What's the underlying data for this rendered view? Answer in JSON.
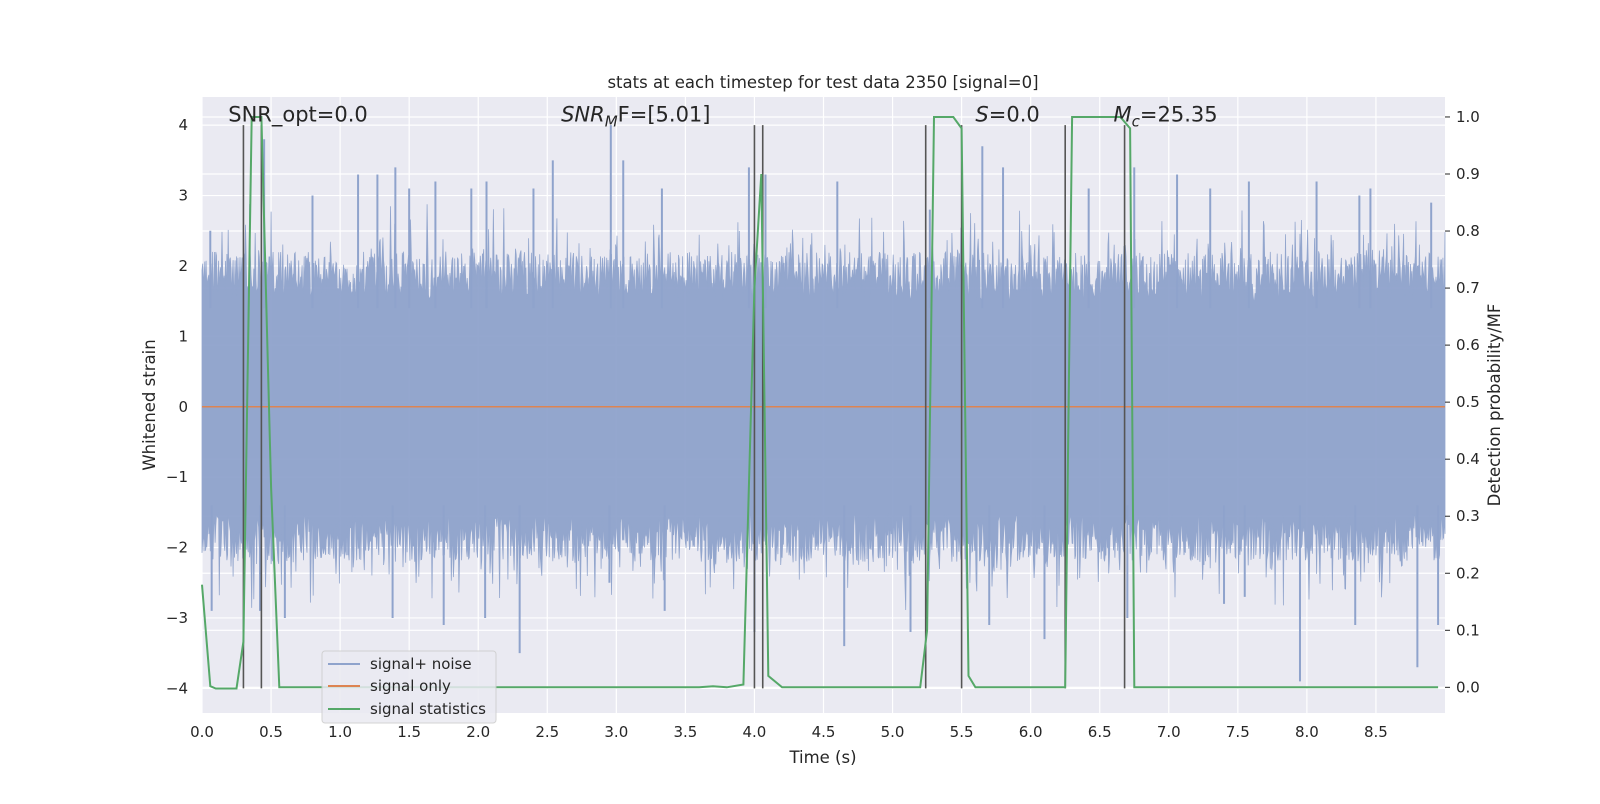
{
  "chart_data": {
    "type": "line",
    "title": "stats at each timestep for test data 2350 [signal=0]",
    "xlabel": "Time (s)",
    "ylabel": "Whitened strain",
    "ylabel_right": "Detection probability/MF",
    "xlim": [
      0,
      9.0
    ],
    "ylim": [
      -4.35,
      4.4
    ],
    "ylim_right": [
      -0.045,
      1.035
    ],
    "x_ticks": [
      0.0,
      0.5,
      1.0,
      1.5,
      2.0,
      2.5,
      3.0,
      3.5,
      4.0,
      4.5,
      5.0,
      5.5,
      6.0,
      6.5,
      7.0,
      7.5,
      8.0,
      8.5
    ],
    "x_tick_labels": [
      "0.0",
      "0.5",
      "1.0",
      "1.5",
      "2.0",
      "2.5",
      "3.0",
      "3.5",
      "4.0",
      "4.5",
      "5.0",
      "5.5",
      "6.0",
      "6.5",
      "7.0",
      "7.5",
      "8.0",
      "8.5"
    ],
    "y_ticks": [
      4,
      3,
      2,
      1,
      0,
      -1,
      -2,
      -3,
      -4
    ],
    "y_tick_labels": [
      "4",
      "3",
      "2",
      "1",
      "0",
      "−1",
      "−2",
      "−3",
      "−4"
    ],
    "y_right_ticks": [
      1.0,
      0.9,
      0.8,
      0.7,
      0.6,
      0.5,
      0.4,
      0.3,
      0.2,
      0.1,
      0.0
    ],
    "y_right_tick_labels": [
      "1.0",
      "0.9",
      "0.8",
      "0.7",
      "0.6",
      "0.5",
      "0.4",
      "0.3",
      "0.2",
      "0.1",
      "0.0"
    ],
    "grid": true,
    "legend": {
      "placement": "lower-left",
      "entries": [
        {
          "label": "signal+ noise",
          "color": "#8fa3cc"
        },
        {
          "label": "signal only",
          "color": "#dd8452"
        },
        {
          "label": "signal statistics",
          "color": "#55a868"
        }
      ]
    },
    "annotations": [
      {
        "text": "SNR_opt=0.0",
        "x": 0.19,
        "y": 4.05
      },
      {
        "base": "SNR",
        "sub": "M",
        "rest": "F=[5.01]",
        "x": 2.6,
        "y": 4.05
      },
      {
        "base": "S",
        "sub": "",
        "rest": "=0.0",
        "x": 5.6,
        "y": 4.05
      },
      {
        "base": "M",
        "sub": "c",
        "rest": "=25.35",
        "x": 6.6,
        "y": 4.05
      }
    ],
    "vertical_lines": {
      "color": "#555555",
      "x": [
        0.3,
        0.43,
        4.0,
        4.06,
        5.24,
        5.5,
        6.25,
        6.68
      ],
      "y_range": [
        -4,
        4
      ]
    },
    "noise_series": {
      "name": "signal+ noise",
      "color": "#8fa3cc",
      "core_band": [
        -1.55,
        1.55
      ],
      "envelope_points_per_unit": 200,
      "spikes_up": [
        [
          0.06,
          2.5
        ],
        [
          0.45,
          3.8
        ],
        [
          0.8,
          3.0
        ],
        [
          1.13,
          3.3
        ],
        [
          1.27,
          3.3
        ],
        [
          1.4,
          3.4
        ],
        [
          1.5,
          3.1
        ],
        [
          1.69,
          3.2
        ],
        [
          1.95,
          3.1
        ],
        [
          2.06,
          3.2
        ],
        [
          2.4,
          3.1
        ],
        [
          2.54,
          3.5
        ],
        [
          2.96,
          4.0
        ],
        [
          3.05,
          3.5
        ],
        [
          3.33,
          3.1
        ],
        [
          3.96,
          3.4
        ],
        [
          4.08,
          3.3
        ],
        [
          4.6,
          3.2
        ],
        [
          5.27,
          2.8
        ],
        [
          5.65,
          3.7
        ],
        [
          5.8,
          3.4
        ],
        [
          6.42,
          3.1
        ],
        [
          6.75,
          3.4
        ],
        [
          7.06,
          3.3
        ],
        [
          7.3,
          3.1
        ],
        [
          7.58,
          3.2
        ],
        [
          8.07,
          3.2
        ],
        [
          8.38,
          3.0
        ],
        [
          8.46,
          3.1
        ],
        [
          8.9,
          2.9
        ]
      ],
      "spikes_down": [
        [
          0.07,
          -2.9
        ],
        [
          0.42,
          -2.9
        ],
        [
          0.6,
          -3.0
        ],
        [
          1.38,
          -3.0
        ],
        [
          1.75,
          -3.1
        ],
        [
          2.05,
          -3.0
        ],
        [
          2.3,
          -3.5
        ],
        [
          2.95,
          -2.5
        ],
        [
          3.35,
          -2.9
        ],
        [
          4.0,
          -3.2
        ],
        [
          4.65,
          -3.4
        ],
        [
          5.13,
          -3.2
        ],
        [
          5.7,
          -3.1
        ],
        [
          6.1,
          -3.3
        ],
        [
          6.7,
          -3.0
        ],
        [
          7.4,
          -2.8
        ],
        [
          7.55,
          -2.7
        ],
        [
          7.95,
          -3.9
        ],
        [
          8.35,
          -3.1
        ],
        [
          8.8,
          -3.7
        ],
        [
          8.95,
          -3.1
        ]
      ]
    },
    "signal_only_series": {
      "name": "signal only",
      "color": "#dd8452",
      "x": [
        0,
        9.0
      ],
      "y": [
        0,
        0
      ]
    },
    "statistics_series": {
      "name": "signal statistics",
      "color": "#55a868",
      "axis": "right",
      "x": [
        0.0,
        0.06,
        0.1,
        0.25,
        0.3,
        0.36,
        0.43,
        0.5,
        0.56,
        1.0,
        2.0,
        3.0,
        3.6,
        3.7,
        3.8,
        3.92,
        4.0,
        4.05,
        4.1,
        4.2,
        4.5,
        5.0,
        5.2,
        5.25,
        5.3,
        5.38,
        5.44,
        5.5,
        5.55,
        5.6,
        6.0,
        6.25,
        6.3,
        6.35,
        6.5,
        6.65,
        6.72,
        6.75,
        7.0,
        8.0,
        8.95
      ],
      "y": [
        0.18,
        0.002,
        -0.002,
        -0.002,
        0.08,
        1.0,
        1.0,
        0.35,
        0.0,
        0.0,
        0.0,
        0.0,
        0.0,
        0.002,
        0.0,
        0.005,
        0.7,
        0.9,
        0.02,
        0.0,
        0.0,
        0.0,
        0.0,
        0.1,
        1.0,
        1.0,
        1.0,
        0.98,
        0.02,
        0.0,
        0.0,
        0.0,
        1.0,
        1.0,
        1.0,
        1.0,
        0.98,
        0.0,
        0.0,
        0.0,
        0.0
      ]
    }
  }
}
